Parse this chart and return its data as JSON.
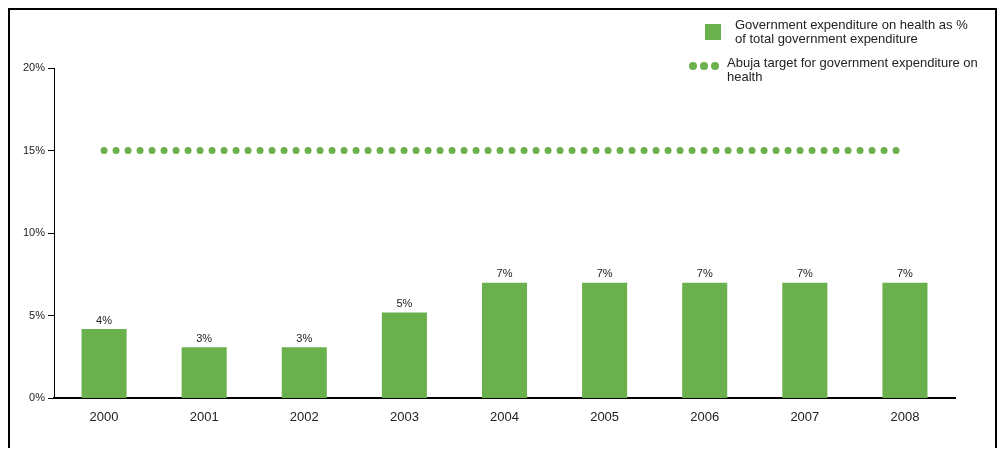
{
  "chart_data": {
    "type": "bar",
    "categories": [
      "2000",
      "2001",
      "2002",
      "2003",
      "2004",
      "2005",
      "2006",
      "2007",
      "2008"
    ],
    "series": [
      {
        "name": "Government expenditure on health as % of total government expenditure",
        "color": "#6ab04c",
        "values": [
          4.2,
          3.1,
          3.1,
          5.2,
          7.0,
          7.0,
          7.0,
          7.0,
          7.0
        ],
        "value_labels": [
          "4%",
          "3%",
          "3%",
          "5%",
          "7%",
          "7%",
          "7%",
          "7%",
          "7%"
        ]
      },
      {
        "name": "Abuja target for government expenditure on health",
        "type": "line",
        "color": "#6ab04c",
        "values": [
          15,
          15,
          15,
          15,
          15,
          15,
          15,
          15,
          15
        ],
        "line_style": "dotted",
        "marker": "none"
      }
    ],
    "ylim": [
      0,
      20
    ],
    "yticks": [
      {
        "value": 0,
        "label": "0%"
      },
      {
        "value": 5,
        "label": "5%"
      },
      {
        "value": 10,
        "label": "10%"
      },
      {
        "value": 15,
        "label": "15%"
      },
      {
        "value": 20,
        "label": "20%"
      }
    ],
    "grid": false,
    "legend": "top right"
  }
}
